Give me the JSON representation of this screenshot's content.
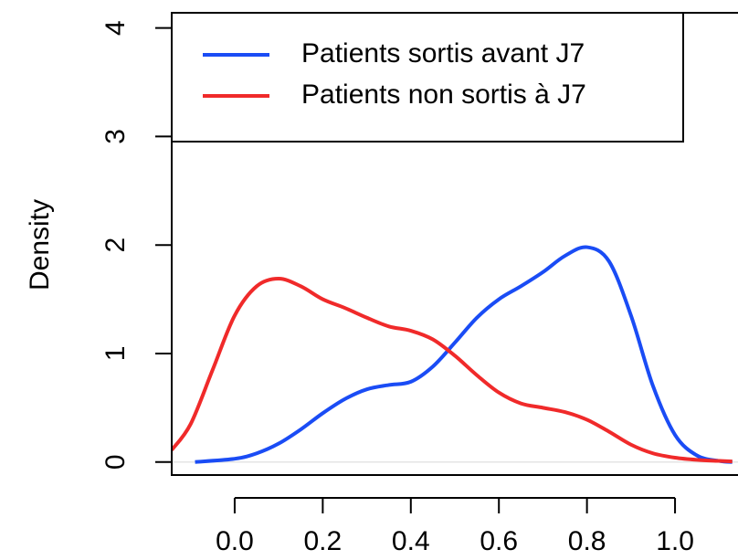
{
  "chart_data": {
    "type": "line",
    "y_label": "Density",
    "xlim": [
      -0.143,
      1.143
    ],
    "ylim": [
      -0.12,
      4.14
    ],
    "xticks": [
      {
        "value": 0,
        "label": "0.0"
      },
      0.2,
      0.4,
      0.6,
      0.8,
      {
        "value": 1,
        "label": "1.0"
      }
    ],
    "yticks": [
      0,
      1,
      2,
      3,
      4
    ],
    "legend_position": "topleft",
    "series": [
      {
        "name": "Patients sortis avant J7",
        "color": "#1a4cf5",
        "x": [
          -0.09,
          0,
          0.05,
          0.1,
          0.15,
          0.2,
          0.25,
          0.3,
          0.35,
          0.4,
          0.45,
          0.5,
          0.55,
          0.6,
          0.65,
          0.7,
          0.75,
          0.8,
          0.85,
          0.9,
          0.95,
          1.0,
          1.05,
          1.1,
          1.13
        ],
        "values": [
          0.0,
          0.03,
          0.08,
          0.17,
          0.3,
          0.45,
          0.58,
          0.67,
          0.71,
          0.74,
          0.88,
          1.1,
          1.33,
          1.5,
          1.62,
          1.75,
          1.9,
          1.98,
          1.85,
          1.35,
          0.7,
          0.25,
          0.06,
          0.01,
          0.0
        ]
      },
      {
        "name": "Patients non sortis à J7",
        "color": "#f02a2a",
        "x": [
          -0.143,
          -0.1,
          -0.05,
          0,
          0.05,
          0.1,
          0.15,
          0.2,
          0.25,
          0.3,
          0.35,
          0.4,
          0.45,
          0.5,
          0.55,
          0.6,
          0.65,
          0.7,
          0.75,
          0.8,
          0.85,
          0.9,
          0.95,
          1.0,
          1.05,
          1.1,
          1.13
        ],
        "values": [
          0.11,
          0.35,
          0.85,
          1.35,
          1.62,
          1.69,
          1.62,
          1.5,
          1.42,
          1.33,
          1.25,
          1.21,
          1.13,
          0.98,
          0.8,
          0.64,
          0.54,
          0.5,
          0.46,
          0.39,
          0.28,
          0.16,
          0.08,
          0.04,
          0.02,
          0.01,
          0.005
        ]
      }
    ]
  }
}
